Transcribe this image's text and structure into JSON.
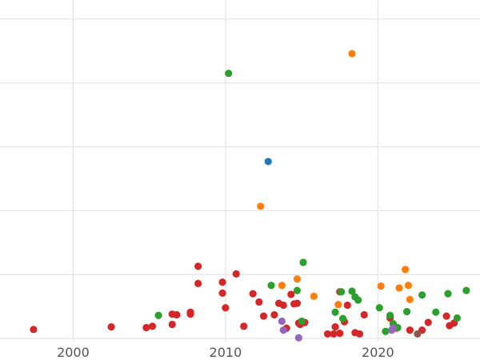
{
  "chart_data": {
    "type": "scatter",
    "title": "",
    "xlabel": "",
    "ylabel": "",
    "xlim": [
      1995.2,
      2026.7
    ],
    "ylim": [
      -0.05,
      5.3
    ],
    "x_ticks": [
      2000,
      2010,
      2020
    ],
    "x_tick_labels": [
      "2000",
      "2010",
      "2020"
    ],
    "y_gridlines": [
      0,
      1,
      2,
      3,
      4,
      5
    ],
    "grid": true,
    "legend": "none",
    "colors": {
      "red": "#d62728",
      "green": "#2ca02c",
      "orange": "#ff7f0e",
      "blue": "#1f77b4",
      "purple": "#9467bd",
      "brown": "#8c564b"
    },
    "series": [
      {
        "color": "red",
        "x": [
          1997.4,
          2002.5,
          2004.8,
          2005.2,
          2006.5,
          2006.8,
          2006.5,
          2007.7,
          2007.7,
          2008.2,
          2008.2,
          2009.8,
          2009.8,
          2010.0,
          2010.7,
          2011.2,
          2011.8,
          2012.2,
          2012.5,
          2013.2,
          2013.5,
          2013.8,
          2014.0,
          2014.3,
          2014.5,
          2014.7,
          2014.8,
          2014.9,
          2015.2,
          2016.7,
          2017.1,
          2017.2,
          2017.5,
          2017.5,
          2017.8,
          2018.0,
          2018.5,
          2018.8,
          2019.1,
          2020.8,
          2020.8,
          2021.2,
          2022.1,
          2022.9,
          2023.3,
          2024.5,
          2024.7,
          2025.0
        ],
        "y": [
          0.14,
          0.18,
          0.17,
          0.19,
          0.22,
          0.37,
          0.38,
          0.41,
          0.38,
          1.13,
          0.86,
          0.88,
          0.71,
          0.48,
          1.01,
          0.19,
          0.7,
          0.57,
          0.35,
          0.37,
          0.55,
          0.52,
          0.16,
          0.69,
          0.54,
          0.55,
          0.24,
          0.22,
          0.25,
          0.07,
          0.07,
          0.18,
          0.73,
          0.08,
          0.26,
          0.52,
          0.09,
          0.07,
          0.37,
          0.32,
          0.35,
          0.16,
          0.13,
          0.13,
          0.25,
          0.35,
          0.2,
          0.24
        ]
      },
      {
        "color": "green",
        "x": [
          2005.6,
          2010.2,
          2013.0,
          2014.7,
          2015.0,
          2015.1,
          2017.2,
          2017.6,
          2017.7,
          2018.3,
          2018.5,
          2018.7,
          2020.1,
          2020.5,
          2020.8,
          2021.0,
          2021.3,
          2021.9,
          2022.9,
          2023.8,
          2024.6,
          2025.2,
          2025.8
        ],
        "y": [
          0.36,
          4.15,
          0.83,
          0.75,
          0.27,
          1.19,
          0.41,
          0.73,
          0.31,
          0.74,
          0.65,
          0.6,
          0.48,
          0.11,
          0.36,
          0.23,
          0.17,
          0.42,
          0.68,
          0.41,
          0.7,
          0.32,
          0.75
        ]
      },
      {
        "color": "orange",
        "x": [
          2012.3,
          2013.7,
          2014.7,
          2015.8,
          2017.4,
          2018.3,
          2020.2,
          2021.4,
          2021.8,
          2022.0,
          2022.1
        ],
        "y": [
          2.07,
          0.83,
          0.93,
          0.66,
          0.53,
          4.46,
          0.82,
          0.79,
          1.08,
          0.83,
          0.61
        ]
      },
      {
        "color": "blue",
        "x": [
          2012.8
        ],
        "y": [
          2.77
        ]
      },
      {
        "color": "purple",
        "x": [
          2013.7,
          2013.8,
          2014.8,
          2020.9,
          2021.0
        ],
        "y": [
          0.27,
          0.13,
          0.01,
          0.13,
          0.16
        ]
      },
      {
        "color": "brown",
        "x": [
          2022.6
        ],
        "y": [
          0.07
        ]
      }
    ]
  }
}
